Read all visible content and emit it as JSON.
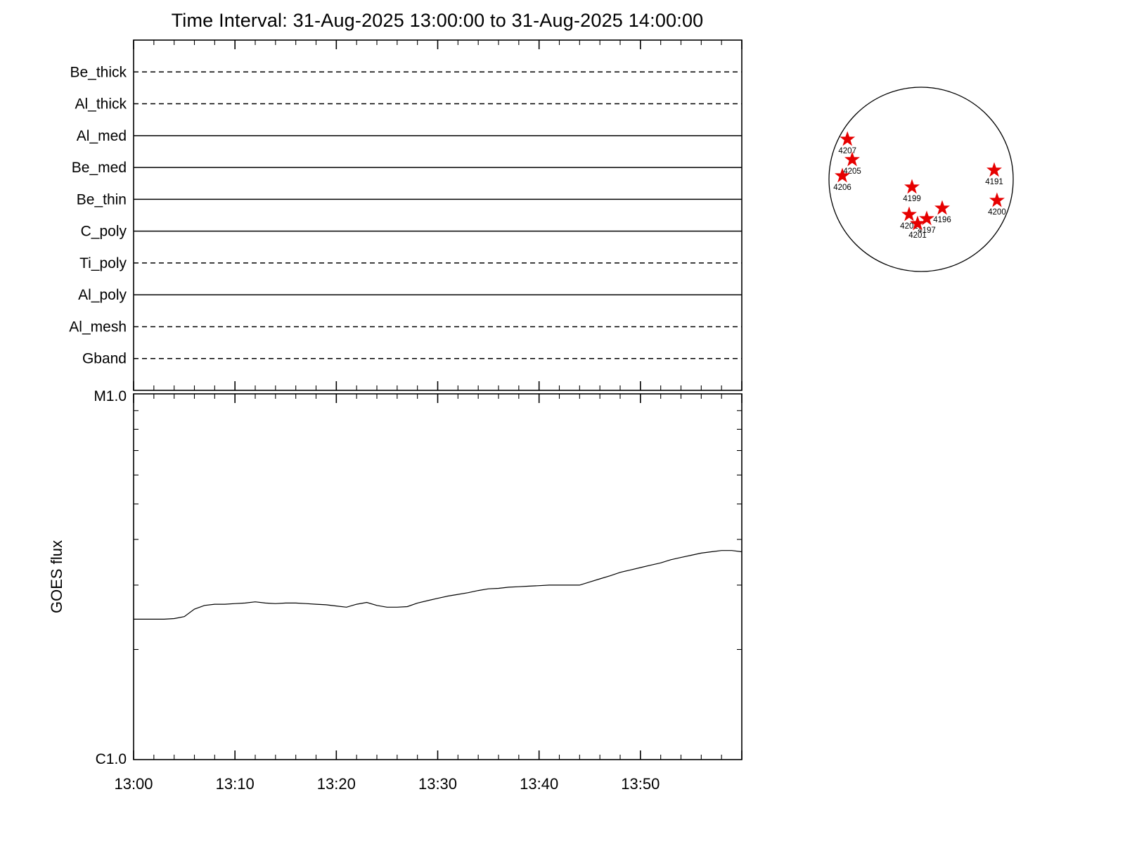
{
  "title": "Time Interval: 31-Aug-2025 13:00:00 to 31-Aug-2025 14:00:00",
  "chart_data": [
    {
      "type": "line",
      "name": "xrt-filter-timeline",
      "x_axis": {
        "start": "13:00:00",
        "end": "14:00:00",
        "major_tick_minutes": 10,
        "minor_tick_minutes": 2
      },
      "filters": [
        {
          "label": "Be_thick",
          "style": "dashed"
        },
        {
          "label": "Al_thick",
          "style": "dashed"
        },
        {
          "label": "Al_med",
          "style": "solid"
        },
        {
          "label": "Be_med",
          "style": "solid"
        },
        {
          "label": "Be_thin",
          "style": "solid"
        },
        {
          "label": "C_poly",
          "style": "solid"
        },
        {
          "label": "Ti_poly",
          "style": "dashed"
        },
        {
          "label": "Al_poly",
          "style": "solid"
        },
        {
          "label": "Al_mesh",
          "style": "dashed"
        },
        {
          "label": "Gband",
          "style": "dashed"
        }
      ]
    },
    {
      "type": "line",
      "name": "goes-flux",
      "ylabel": "GOES flux",
      "y_scale": "log",
      "yticks": [
        "M1.0",
        "C1.0"
      ],
      "ylim": [
        "C1.0",
        "M1.0"
      ],
      "xticks": [
        "13:00",
        "13:10",
        "13:20",
        "13:30",
        "13:40",
        "13:50"
      ],
      "x_minutes": [
        0,
        1,
        2,
        3,
        4,
        5,
        6,
        7,
        8,
        9,
        10,
        11,
        12,
        13,
        14,
        15,
        16,
        17,
        18,
        19,
        20,
        21,
        22,
        23,
        24,
        25,
        26,
        27,
        28,
        29,
        30,
        31,
        32,
        33,
        34,
        35,
        36,
        37,
        38,
        39,
        40,
        41,
        42,
        43,
        44,
        45,
        46,
        47,
        48,
        49,
        50,
        51,
        52,
        53,
        54,
        55,
        56,
        57,
        58,
        59,
        60
      ],
      "flux_c_units": [
        2.42,
        2.42,
        2.42,
        2.42,
        2.43,
        2.46,
        2.58,
        2.64,
        2.66,
        2.66,
        2.67,
        2.68,
        2.7,
        2.68,
        2.67,
        2.68,
        2.68,
        2.67,
        2.66,
        2.65,
        2.63,
        2.61,
        2.66,
        2.69,
        2.64,
        2.61,
        2.61,
        2.62,
        2.68,
        2.72,
        2.76,
        2.8,
        2.83,
        2.86,
        2.9,
        2.93,
        2.94,
        2.96,
        2.97,
        2.98,
        2.99,
        3.0,
        3.0,
        3.0,
        3.0,
        3.06,
        3.12,
        3.18,
        3.25,
        3.3,
        3.35,
        3.4,
        3.45,
        3.52,
        3.57,
        3.62,
        3.67,
        3.7,
        3.73,
        3.73,
        3.7
      ]
    },
    {
      "type": "scatter",
      "name": "solar-disk-active-regions",
      "star_color": "#e60000",
      "regions": [
        {
          "id": "4207",
          "dx": -0.8,
          "dy": -0.435
        },
        {
          "id": "4205",
          "dx": -0.748,
          "dy": -0.214
        },
        {
          "id": "4206",
          "dx": -0.855,
          "dy": -0.038
        },
        {
          "id": "4199",
          "dx": -0.099,
          "dy": 0.084
        },
        {
          "id": "4191",
          "dx": 0.794,
          "dy": -0.099
        },
        {
          "id": "4200",
          "dx": 0.824,
          "dy": 0.229
        },
        {
          "id": "4202",
          "dx": -0.13,
          "dy": 0.382
        },
        {
          "id": "4196",
          "dx": 0.229,
          "dy": 0.313
        },
        {
          "id": "4197",
          "dx": 0.061,
          "dy": 0.427
        },
        {
          "id": "4201",
          "dx": -0.038,
          "dy": 0.481
        }
      ]
    }
  ]
}
